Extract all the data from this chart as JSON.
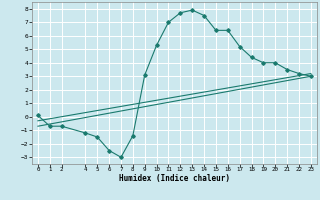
{
  "title": "",
  "xlabel": "Humidex (Indice chaleur)",
  "bg_color": "#cce8ee",
  "grid_color": "#ffffff",
  "line_color": "#1a7a6e",
  "xlim": [
    -0.5,
    23.5
  ],
  "ylim": [
    -3.5,
    8.5
  ],
  "xticks": [
    0,
    1,
    2,
    4,
    5,
    6,
    7,
    8,
    9,
    10,
    11,
    12,
    13,
    14,
    15,
    16,
    17,
    18,
    19,
    20,
    21,
    22,
    23
  ],
  "yticks": [
    -3,
    -2,
    -1,
    0,
    1,
    2,
    3,
    4,
    5,
    6,
    7,
    8
  ],
  "curve1_x": [
    0,
    1,
    2,
    4,
    5,
    6,
    7,
    8,
    9,
    10,
    11,
    12,
    13,
    14,
    15,
    16,
    17,
    18,
    19,
    20,
    21,
    22,
    23
  ],
  "curve1_y": [
    0.1,
    -0.7,
    -0.7,
    -1.2,
    -1.5,
    -2.5,
    -3.0,
    -1.4,
    3.1,
    5.3,
    7.0,
    7.7,
    7.9,
    7.5,
    6.4,
    6.4,
    5.2,
    4.4,
    4.0,
    4.0,
    3.5,
    3.2,
    3.0
  ],
  "curve2_x": [
    0,
    23
  ],
  "curve2_y": [
    -0.3,
    3.2
  ],
  "curve3_x": [
    0,
    23
  ],
  "curve3_y": [
    -0.7,
    3.0
  ]
}
